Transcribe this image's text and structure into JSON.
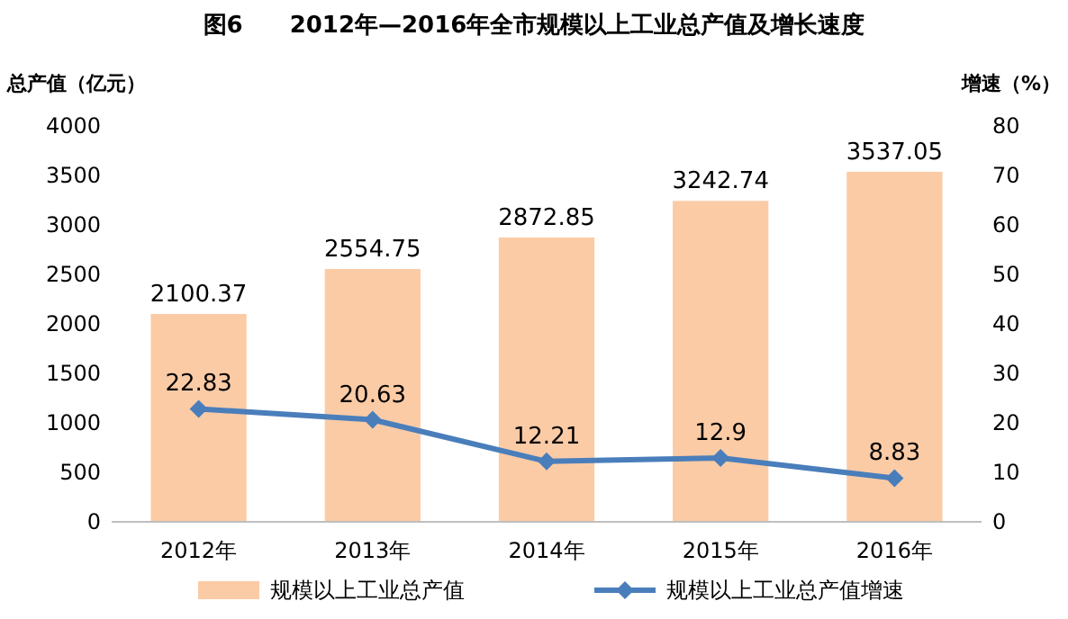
{
  "chart_data": {
    "type": "bar",
    "title": "图6　　2012年—2016年全市规模以上工业总产值及增长速度",
    "ylabel": "总产值（亿元）",
    "y2label": "增速（%）",
    "categories": [
      "2012年",
      "2013年",
      "2014年",
      "2015年",
      "2016年"
    ],
    "series": [
      {
        "name": "规模以上工业总产值",
        "color": "#fbcba6",
        "values": [
          2100.37,
          2554.75,
          2872.85,
          3242.74,
          3537.05
        ]
      },
      {
        "name": "规模以上工业总产值增速",
        "type": "line",
        "axis": "y2",
        "color": "#4a7ebb",
        "marker": "diamond",
        "values": [
          22.83,
          20.63,
          12.21,
          12.9,
          8.83
        ]
      }
    ],
    "ylim": [
      0,
      4000
    ],
    "yticks": [
      0,
      500,
      1000,
      1500,
      2000,
      2500,
      3000,
      3500,
      4000
    ],
    "y2lim": [
      0,
      80
    ],
    "y2ticks": [
      0,
      10,
      20,
      30,
      40,
      50,
      60,
      70,
      80
    ],
    "data_labels": true,
    "legend": "bottom",
    "grid": false
  }
}
